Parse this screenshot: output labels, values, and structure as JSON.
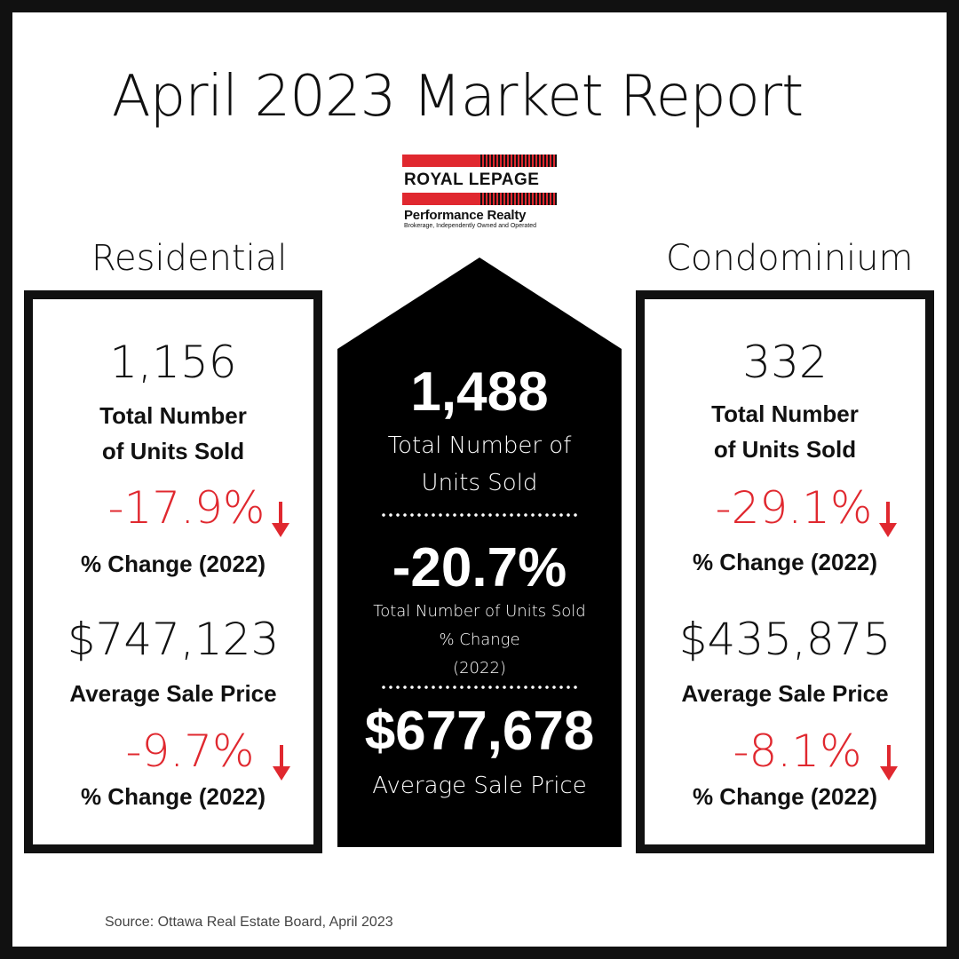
{
  "title": "April 2023 Market Report",
  "logo": {
    "brand": "ROYAL LEPAGE",
    "name": "Performance Realty",
    "tagline": "Brokerage, Independently Owned and Operated"
  },
  "residential": {
    "heading": "Residential",
    "units": "1,156",
    "units_label_1": "Total Number",
    "units_label_2": "of Units Sold",
    "units_change": "-17.9%",
    "change_label": "% Change (2022)",
    "price": "$747,123",
    "price_label": "Average Sale Price",
    "price_change": "-9.7%",
    "price_change_label": "% Change (2022)"
  },
  "condominium": {
    "heading": "Condominium",
    "units": "332",
    "units_label_1": "Total Number",
    "units_label_2": "of Units Sold",
    "units_change": "-29.1%",
    "change_label": "% Change (2022)",
    "price": "$435,875",
    "price_label": "Average Sale Price",
    "price_change": "-8.1%",
    "price_change_label": "% Change (2022)"
  },
  "total": {
    "units": "1,488",
    "units_label_1": "Total Number of",
    "units_label_2": "Units Sold",
    "change": "-20.7%",
    "change_label_1": "Total Number of Units Sold",
    "change_label_2": "% Change",
    "change_label_3": "(2022)",
    "price": "$677,678",
    "price_label": "Average Sale Price"
  },
  "source": "Source: Ottawa Real Estate Board, April 2023",
  "colors": {
    "accent_red": "#e0282f",
    "dark": "#111111"
  },
  "icons": {
    "down": "down-arrow-icon"
  }
}
